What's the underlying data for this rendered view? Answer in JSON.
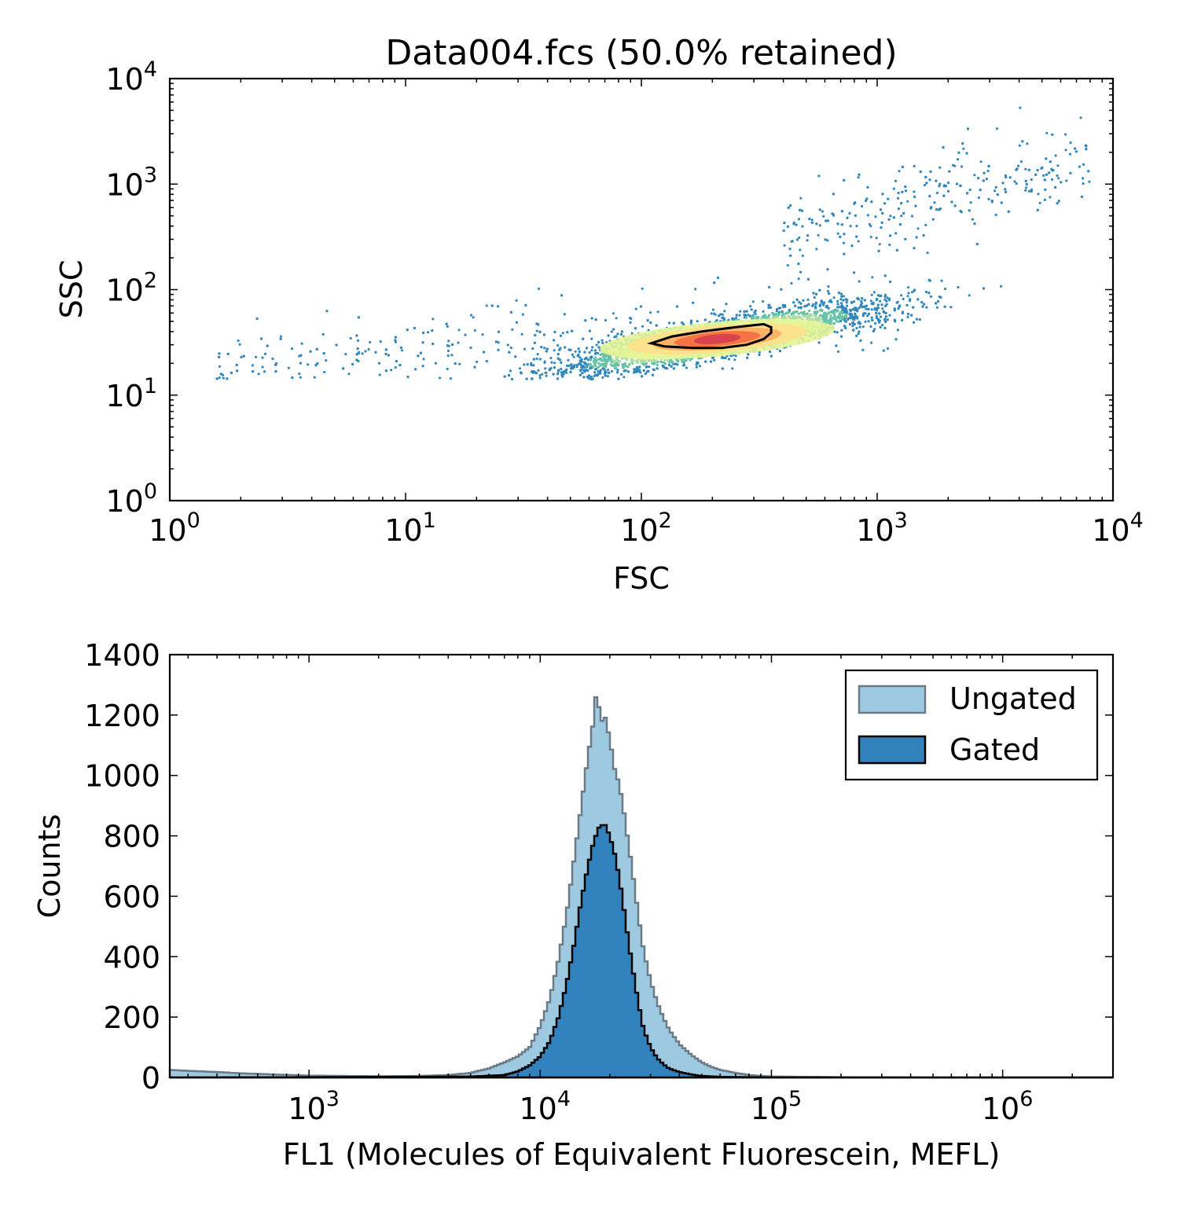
{
  "chart_data": [
    {
      "type": "scatter",
      "title": "Data004.fcs (50.0% retained)",
      "xlabel": "FSC",
      "ylabel": "SSC",
      "xscale": "log",
      "yscale": "log",
      "xlim": [
        1,
        10000
      ],
      "ylim": [
        1,
        10000
      ],
      "xticks": [
        {
          "value": 1,
          "base": "10",
          "exp": "0"
        },
        {
          "value": 10,
          "base": "10",
          "exp": "1"
        },
        {
          "value": 100,
          "base": "10",
          "exp": "2"
        },
        {
          "value": 1000,
          "base": "10",
          "exp": "3"
        },
        {
          "value": 10000,
          "base": "10",
          "exp": "4"
        }
      ],
      "yticks": [
        {
          "value": 1,
          "base": "10",
          "exp": "0"
        },
        {
          "value": 10,
          "base": "10",
          "exp": "1"
        },
        {
          "value": 100,
          "base": "10",
          "exp": "2"
        },
        {
          "value": 1000,
          "base": "10",
          "exp": "3"
        },
        {
          "value": 10000,
          "base": "10",
          "exp": "4"
        }
      ],
      "density_colormap": [
        "#3288bd",
        "#66c2a5",
        "#abdda4",
        "#e6f598",
        "#fee08b",
        "#fdae61",
        "#f46d43",
        "#d53e4f"
      ],
      "population_core": {
        "fsc_median": 210,
        "ssc_median": 34
      },
      "gate_contour": [
        [
          110,
          31
        ],
        [
          135,
          36
        ],
        [
          180,
          40
        ],
        [
          250,
          44
        ],
        [
          300,
          46
        ],
        [
          330,
          47
        ],
        [
          355,
          44
        ],
        [
          355,
          39
        ],
        [
          330,
          34
        ],
        [
          280,
          30
        ],
        [
          220,
          28
        ],
        [
          165,
          28
        ],
        [
          125,
          29
        ],
        [
          110,
          31
        ]
      ],
      "grid": false
    },
    {
      "type": "histogram",
      "xlabel": "FL1 (Molecules of Equivalent Fluorescein, MEFL)",
      "ylabel": "Counts",
      "xscale": "log",
      "xlim": [
        250,
        3000000
      ],
      "ylim": [
        0,
        1400
      ],
      "xticks": [
        {
          "value": 1000,
          "base": "10",
          "exp": "3"
        },
        {
          "value": 10000,
          "base": "10",
          "exp": "4"
        },
        {
          "value": 100000,
          "base": "10",
          "exp": "5"
        },
        {
          "value": 1000000,
          "base": "10",
          "exp": "6"
        }
      ],
      "yticks": [
        0,
        200,
        400,
        600,
        800,
        1000,
        1200,
        1400
      ],
      "legend_position": "top-right",
      "series": [
        {
          "name": "Ungated",
          "color": "#9ecae1",
          "edge": "#6b7b86",
          "x": [
            250,
            300,
            400,
            500,
            700,
            1000,
            2000,
            3000,
            4000,
            5000,
            6000,
            7000,
            8000,
            9000,
            10000,
            11000,
            12000,
            13000,
            14000,
            15000,
            16000,
            17000,
            17500,
            18000,
            18500,
            19000,
            20000,
            21000,
            22000,
            23000,
            24000,
            25000,
            26000,
            27000,
            28000,
            30000,
            32000,
            34000,
            36000,
            40000,
            45000,
            50000,
            55000,
            60000,
            70000,
            80000,
            90000,
            100000,
            150000,
            200000,
            500000,
            1000000,
            3000000
          ],
          "values": [
            25,
            22,
            18,
            14,
            10,
            6,
            4,
            5,
            8,
            15,
            30,
            50,
            70,
            100,
            170,
            260,
            390,
            540,
            720,
            890,
            1050,
            1180,
            1280,
            1220,
            1180,
            1200,
            1120,
            1020,
            970,
            880,
            780,
            690,
            590,
            500,
            420,
            320,
            250,
            200,
            160,
            110,
            75,
            50,
            35,
            25,
            15,
            8,
            5,
            3,
            2,
            1,
            0,
            0,
            0
          ]
        },
        {
          "name": "Gated",
          "color": "#3182bd",
          "edge": "#000000",
          "x": [
            250,
            1000,
            5000,
            7000,
            8000,
            9000,
            10000,
            11000,
            12000,
            13000,
            14000,
            15000,
            16000,
            17000,
            18000,
            19000,
            20000,
            21000,
            22000,
            23000,
            24000,
            25000,
            26000,
            27000,
            28000,
            30000,
            32000,
            34000,
            36000,
            40000,
            45000,
            50000,
            60000,
            80000,
            100000,
            3000000
          ],
          "values": [
            0,
            1,
            3,
            8,
            20,
            40,
            70,
            120,
            200,
            310,
            440,
            580,
            690,
            780,
            830,
            840,
            800,
            740,
            660,
            560,
            460,
            370,
            290,
            220,
            160,
            100,
            65,
            45,
            30,
            18,
            10,
            5,
            2,
            1,
            0,
            0
          ]
        }
      ],
      "grid": false
    }
  ]
}
